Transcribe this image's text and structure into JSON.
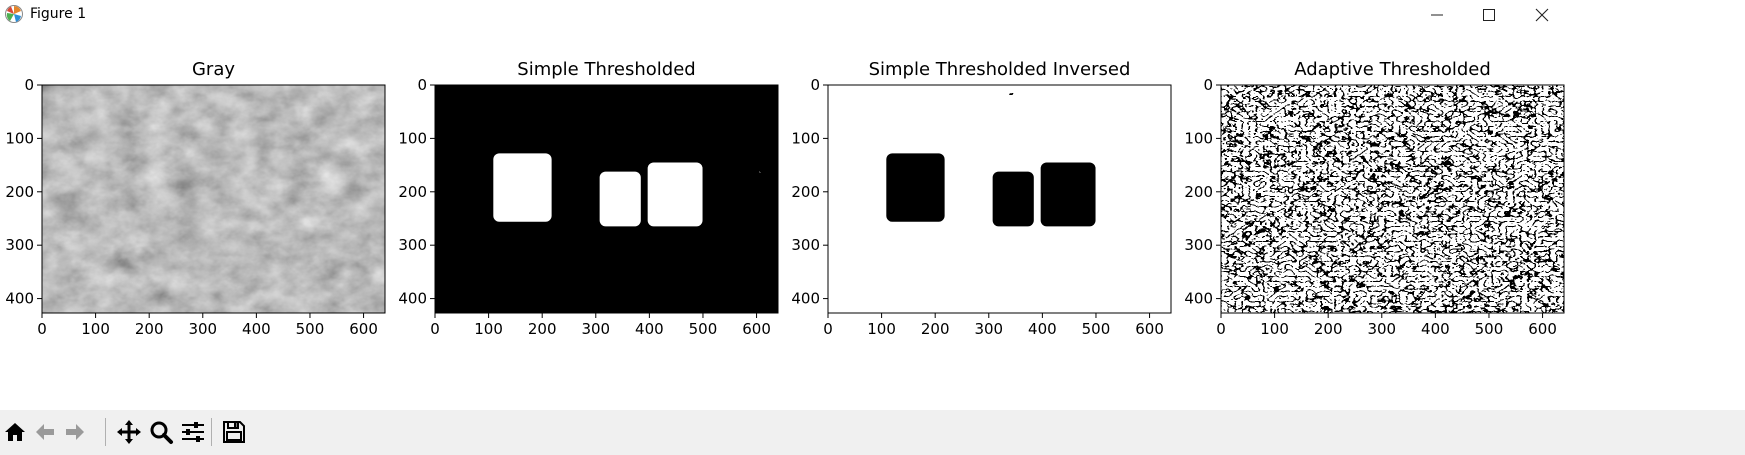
{
  "window": {
    "title": "Figure 1",
    "controls": {
      "minimize": "minimize-icon",
      "maximize": "maximize-icon",
      "close": "close-icon"
    }
  },
  "figure": {
    "subplots": [
      {
        "title": "Gray",
        "style": "gray"
      },
      {
        "title": "Simple Thresholded",
        "style": "binary"
      },
      {
        "title": "Simple Thresholded Inversed",
        "style": "binary-inverse"
      },
      {
        "title": "Adaptive Thresholded",
        "style": "adaptive"
      }
    ],
    "x_ticks": [
      "0",
      "100",
      "200",
      "300",
      "400",
      "500",
      "600"
    ],
    "y_ticks": [
      "0",
      "100",
      "200",
      "300",
      "400"
    ],
    "x_range": [
      0,
      640
    ],
    "y_range": [
      0,
      427
    ]
  },
  "toolbar": {
    "buttons": [
      {
        "name": "home-button",
        "icon": "home-icon",
        "enabled": true
      },
      {
        "name": "back-button",
        "icon": "arrow-left-icon",
        "enabled": false
      },
      {
        "name": "forward-button",
        "icon": "arrow-right-icon",
        "enabled": false
      },
      {
        "name": "pan-button",
        "icon": "move-icon",
        "enabled": true
      },
      {
        "name": "zoom-button",
        "icon": "zoom-icon",
        "enabled": true
      },
      {
        "name": "configure-subplots-button",
        "icon": "sliders-icon",
        "enabled": true
      },
      {
        "name": "save-button",
        "icon": "floppy-icon",
        "enabled": true
      }
    ]
  }
}
